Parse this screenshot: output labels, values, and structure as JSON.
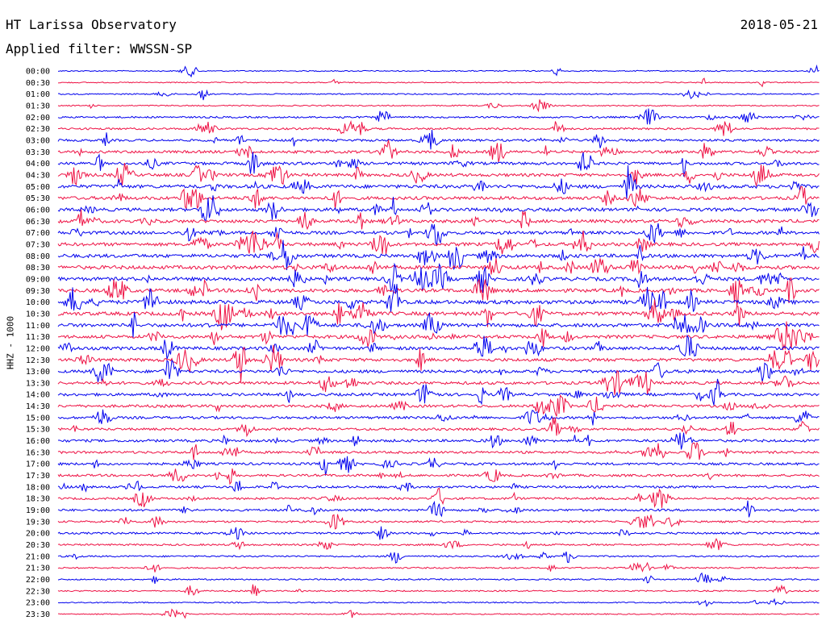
{
  "header": {
    "station": "HT Larissa Observatory",
    "date": "2018-05-21",
    "filter": "Applied filter: WWSSN-SP"
  },
  "chart_data": {
    "type": "line",
    "title": "HT Larissa Observatory",
    "ylabel": "HHZ - 1000",
    "row_labels": [
      "00:00",
      "00:30",
      "01:00",
      "01:30",
      "02:00",
      "02:30",
      "03:00",
      "03:30",
      "04:00",
      "04:30",
      "05:00",
      "05:30",
      "06:00",
      "06:30",
      "07:00",
      "07:30",
      "08:00",
      "08:30",
      "09:00",
      "09:30",
      "10:00",
      "10:30",
      "11:00",
      "11:30",
      "12:00",
      "12:30",
      "13:00",
      "13:30",
      "14:00",
      "14:30",
      "15:00",
      "15:30",
      "16:00",
      "16:30",
      "17:00",
      "17:30",
      "18:00",
      "18:30",
      "19:00",
      "19:30",
      "20:00",
      "20:30",
      "21:00",
      "21:30",
      "22:00",
      "22:30",
      "23:00",
      "23:30"
    ],
    "row_colors": [
      "#0000ee",
      "#ee1144"
    ],
    "activity_levels": [
      0.12,
      0.1,
      0.15,
      0.14,
      0.3,
      0.35,
      0.45,
      0.55,
      0.6,
      0.65,
      0.75,
      0.7,
      0.72,
      0.7,
      0.68,
      0.72,
      0.78,
      0.8,
      0.8,
      0.78,
      0.85,
      0.8,
      0.78,
      0.72,
      0.7,
      0.68,
      0.62,
      0.62,
      0.58,
      0.55,
      0.5,
      0.48,
      0.52,
      0.48,
      0.48,
      0.46,
      0.44,
      0.42,
      0.42,
      0.35,
      0.35,
      0.3,
      0.25,
      0.22,
      0.2,
      0.18,
      0.14,
      0.12
    ],
    "grid": false
  }
}
